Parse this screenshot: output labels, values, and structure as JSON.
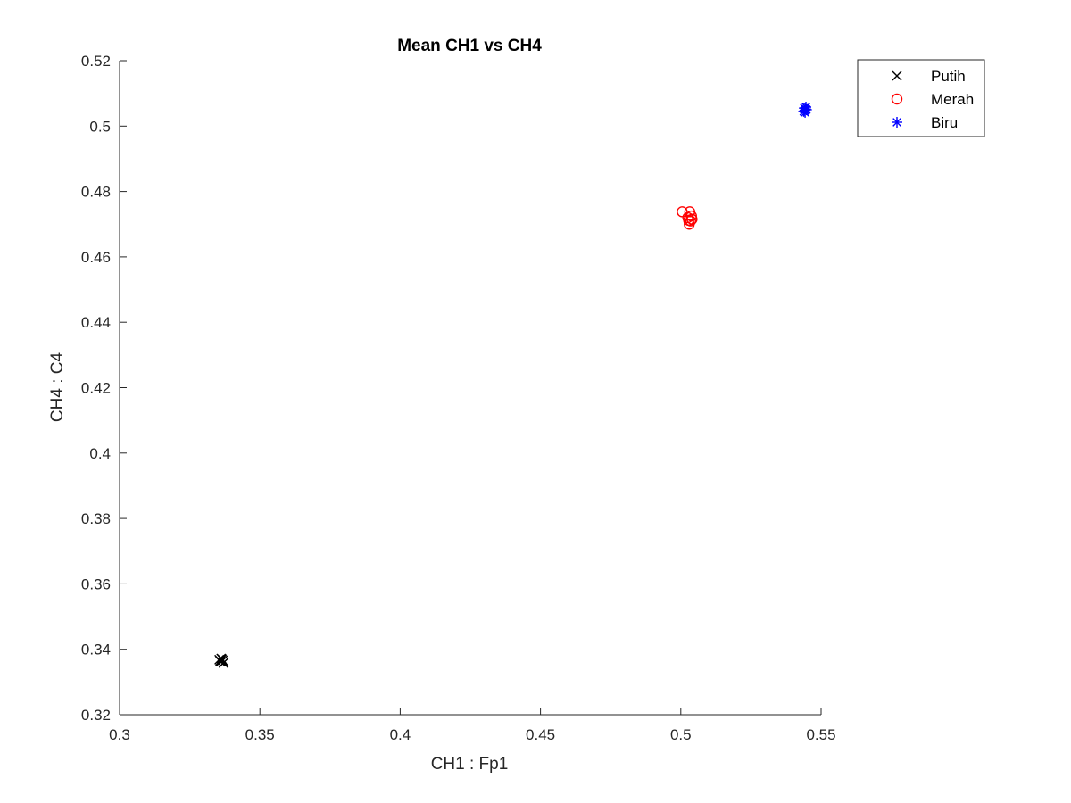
{
  "chart_data": {
    "type": "scatter",
    "title": "Mean CH1 vs CH4",
    "xlabel": "CH1 : Fp1",
    "ylabel": "CH4 : C4",
    "xlim": [
      0.3,
      0.55
    ],
    "ylim": [
      0.32,
      0.52
    ],
    "xticks": [
      0.3,
      0.35,
      0.4,
      0.45,
      0.5,
      0.55
    ],
    "xtick_labels": [
      "0.3",
      "0.35",
      "0.4",
      "0.45",
      "0.5",
      "0.55"
    ],
    "yticks": [
      0.32,
      0.34,
      0.36,
      0.38,
      0.4,
      0.42,
      0.44,
      0.46,
      0.48,
      0.5,
      0.52
    ],
    "ytick_labels": [
      "0.32",
      "0.34",
      "0.36",
      "0.38",
      "0.4",
      "0.42",
      "0.44",
      "0.46",
      "0.48",
      "0.5",
      "0.52"
    ],
    "grid": false,
    "legend_position": "top-right",
    "series": [
      {
        "name": "Putih",
        "marker": "x",
        "color": "#000000",
        "x": [
          0.3355,
          0.3362,
          0.3368,
          0.3358,
          0.3372,
          0.3365,
          0.336,
          0.337
        ],
        "y": [
          0.3368,
          0.3372,
          0.3366,
          0.3364,
          0.336,
          0.337,
          0.3362,
          0.3358
        ]
      },
      {
        "name": "Merah",
        "marker": "o",
        "color": "#ff0000",
        "x": [
          0.5005,
          0.5032,
          0.5038,
          0.5028,
          0.5035,
          0.503,
          0.504,
          0.5025
        ],
        "y": [
          0.4738,
          0.4738,
          0.4725,
          0.4712,
          0.471,
          0.47,
          0.4715,
          0.472
        ]
      },
      {
        "name": "Biru",
        "marker": "*",
        "color": "#0000ff",
        "x": [
          0.544,
          0.5445,
          0.5442,
          0.5448,
          0.5438,
          0.5446,
          0.5443
        ],
        "y": [
          0.5055,
          0.5052,
          0.5048,
          0.505,
          0.5045,
          0.5058,
          0.5042
        ]
      }
    ]
  }
}
